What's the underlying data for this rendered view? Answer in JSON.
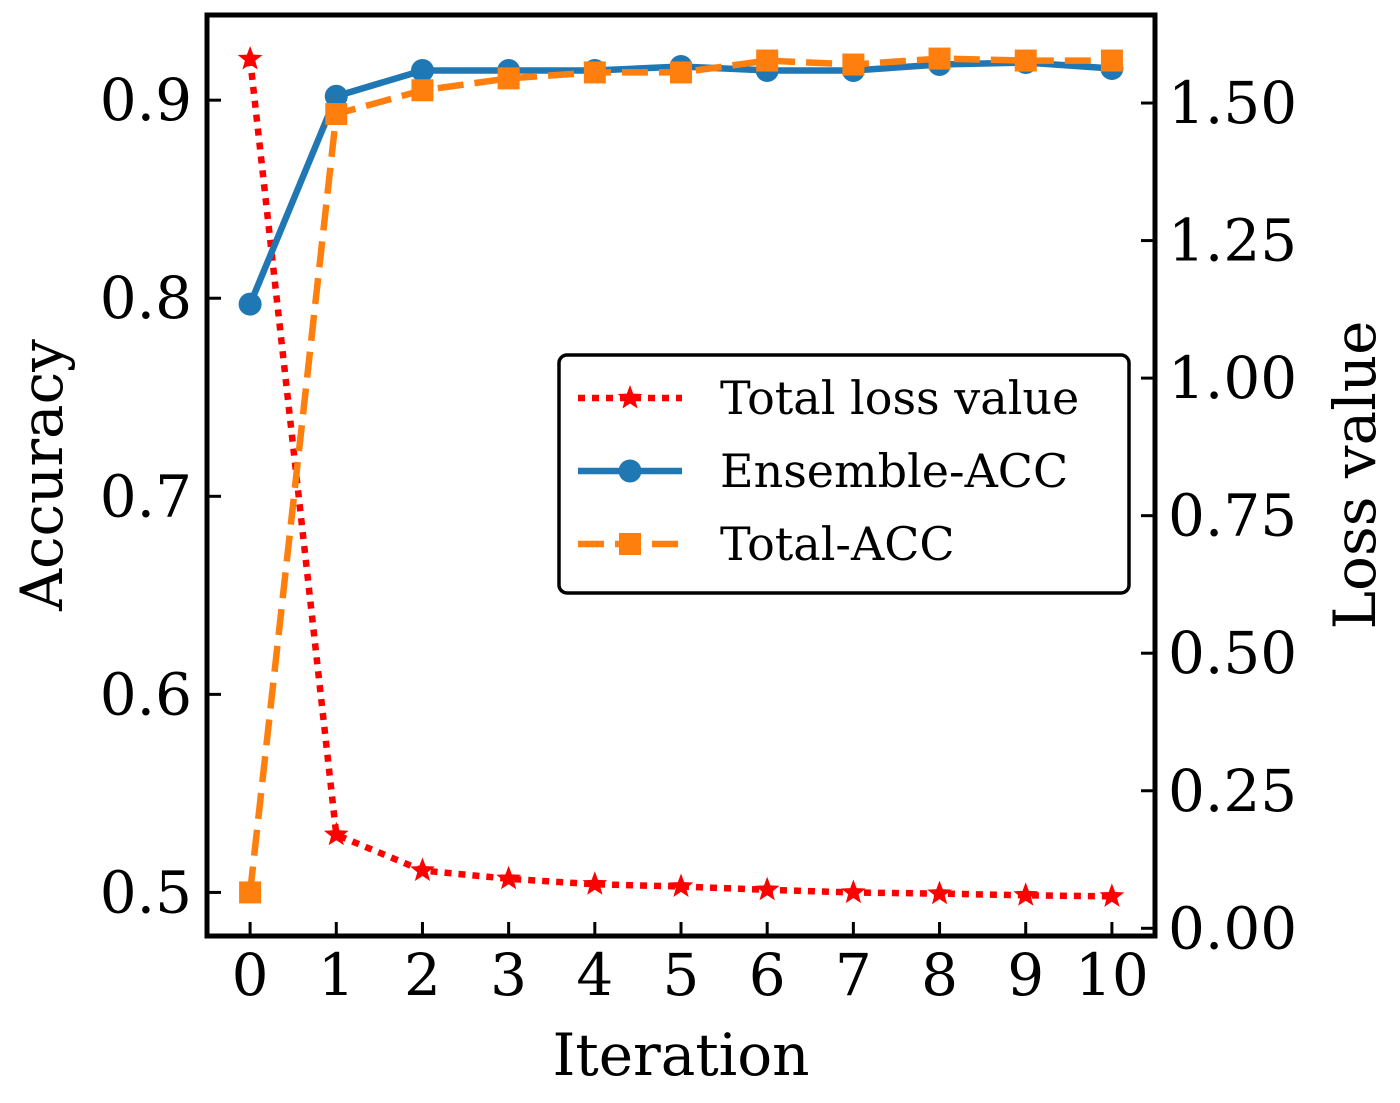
{
  "chart_data": {
    "type": "line",
    "xlabel": "Iteration",
    "ylabel_left": "Accuracy",
    "ylabel_right": "Loss value",
    "x": [
      0,
      1,
      2,
      3,
      4,
      5,
      6,
      7,
      8,
      9,
      10
    ],
    "x_tick_labels": [
      "0",
      "1",
      "2",
      "3",
      "4",
      "5",
      "6",
      "7",
      "8",
      "9",
      "10"
    ],
    "ylim_left": [
      0.478,
      0.943
    ],
    "ylim_right": [
      -0.014,
      1.66
    ],
    "yticks_left": [
      0.5,
      0.6,
      0.7,
      0.8,
      0.9
    ],
    "ytick_labels_left": [
      "0.5",
      "0.6",
      "0.7",
      "0.8",
      "0.9"
    ],
    "yticks_right": [
      0.0,
      0.25,
      0.5,
      0.75,
      1.0,
      1.25,
      1.5
    ],
    "ytick_labels_right": [
      "0.00",
      "0.25",
      "0.50",
      "0.75",
      "1.00",
      "1.25",
      "1.50"
    ],
    "legend_position": "center-right",
    "series": [
      {
        "name": "Total loss value",
        "axis": "right",
        "color": "#ff0000",
        "linestyle": "dotted",
        "marker": "star",
        "values": [
          1.58,
          0.17,
          0.105,
          0.09,
          0.08,
          0.076,
          0.07,
          0.065,
          0.063,
          0.06,
          0.058
        ]
      },
      {
        "name": "Ensemble-ACC",
        "axis": "left",
        "color": "#1f77b4",
        "linestyle": "solid",
        "marker": "circle",
        "values": [
          0.797,
          0.902,
          0.915,
          0.915,
          0.915,
          0.917,
          0.915,
          0.915,
          0.918,
          0.919,
          0.916
        ]
      },
      {
        "name": "Total-ACC",
        "axis": "left",
        "color": "#ff7f0e",
        "linestyle": "dashed",
        "marker": "square",
        "values": [
          0.5,
          0.893,
          0.905,
          0.911,
          0.914,
          0.914,
          0.92,
          0.918,
          0.921,
          0.92,
          0.92
        ]
      }
    ]
  }
}
